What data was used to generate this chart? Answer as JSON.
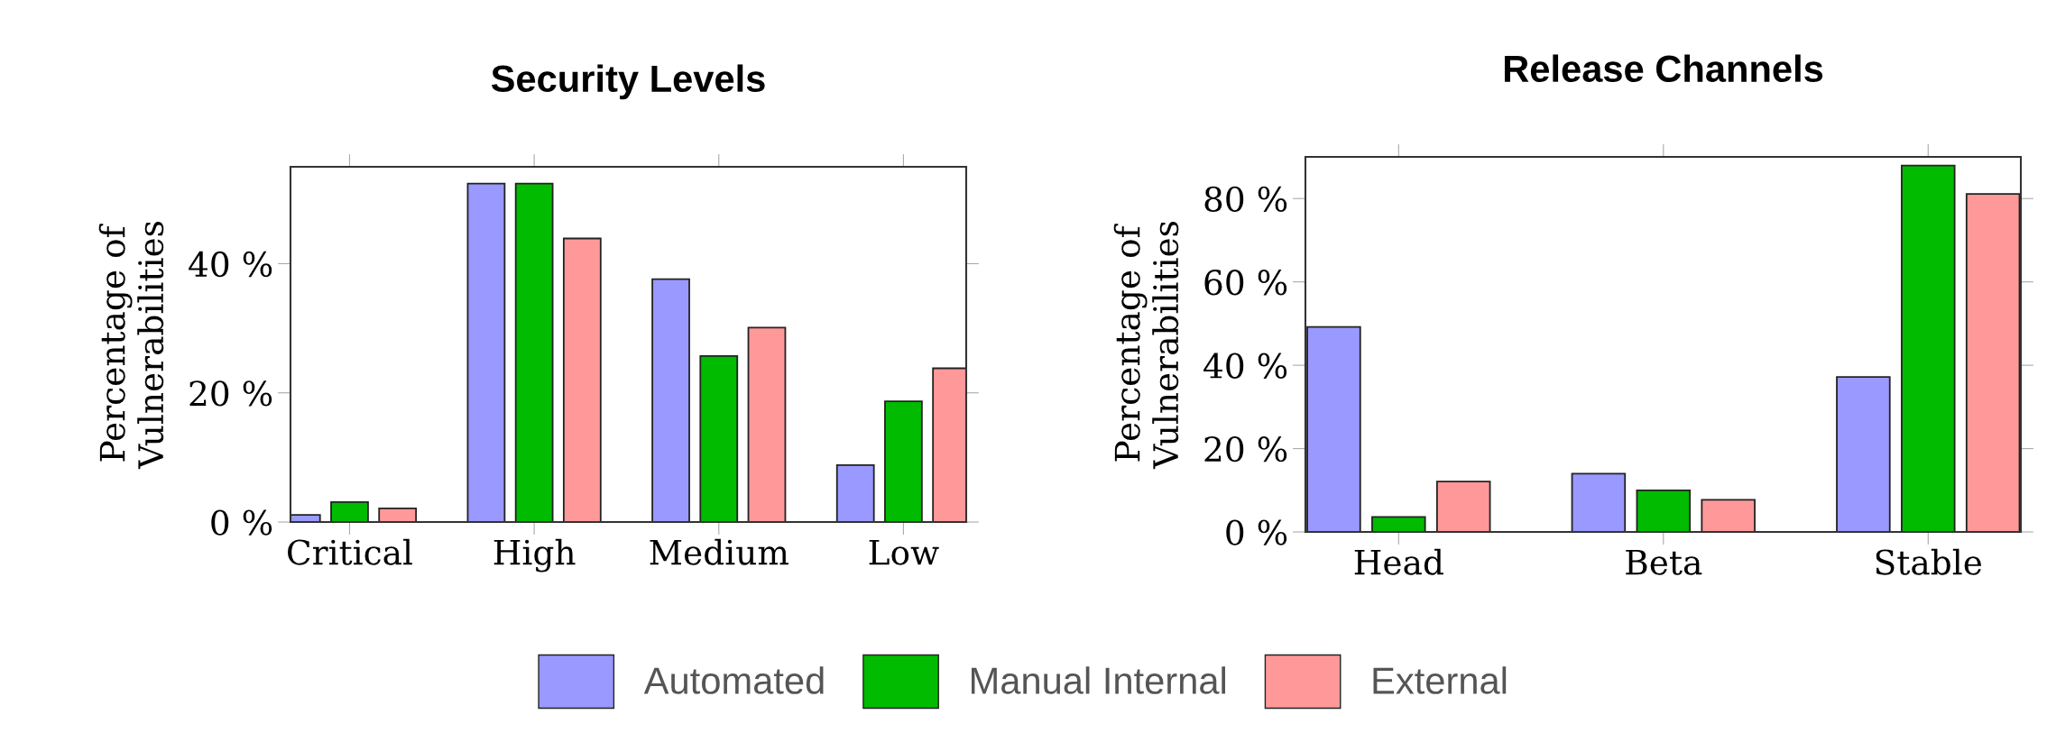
{
  "chart_data": [
    {
      "type": "bar",
      "title": "Security Levels",
      "ylabel": "Percentage of\nVulnerabilities",
      "categories": [
        "Critical",
        "High",
        "Medium",
        "Low"
      ],
      "series": [
        {
          "name": "Automated",
          "color": "#9999ff",
          "values": [
            1.1,
            52.4,
            37.6,
            8.8
          ]
        },
        {
          "name": "Manual Internal",
          "color": "#00bb00",
          "values": [
            3.1,
            52.4,
            25.7,
            18.7
          ]
        },
        {
          "name": "External",
          "color": "#ff9999",
          "values": [
            2.1,
            43.9,
            30.1,
            23.8
          ]
        }
      ],
      "ylim": [
        0,
        55
      ],
      "yticks": [
        {
          "value": 0,
          "label": "0 %"
        },
        {
          "value": 20,
          "label": "20 %"
        },
        {
          "value": 40,
          "label": "40 %"
        }
      ],
      "grid": false,
      "legend": "bottom"
    },
    {
      "type": "bar",
      "title": "Release Channels",
      "ylabel": "Percentage of\nVulnerabilities",
      "categories": [
        "Head",
        "Beta",
        "Stable"
      ],
      "series": [
        {
          "color": "#9999ff",
          "values": [
            49.2,
            14.0,
            37.2
          ]
        },
        {
          "color": "#00bb00",
          "values": [
            3.6,
            10.0,
            87.9
          ]
        },
        {
          "color": "#ff9999",
          "values": [
            12.1,
            7.7,
            81.1
          ]
        }
      ],
      "ylim": [
        0,
        90
      ],
      "yticks": [
        {
          "value": 0,
          "label": "0 %"
        },
        {
          "value": 20,
          "label": "20 %"
        },
        {
          "value": 40,
          "label": "40 %"
        },
        {
          "value": 60,
          "label": "60 %"
        },
        {
          "value": 80,
          "label": "80 %"
        }
      ],
      "grid": false
    }
  ]
}
